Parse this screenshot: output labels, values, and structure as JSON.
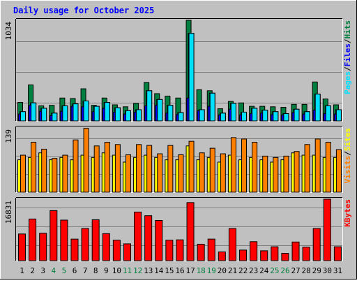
{
  "title": "Daily usage for October 2025",
  "colors": {
    "background": "#C0C0C0",
    "title": "#0000FF",
    "hits": "#008040",
    "files": "#00E0FF",
    "pages": "#0000FF",
    "visits": "#FFFF00",
    "sites": "#FF8000",
    "kbytes": "#FF0000",
    "weekend_label": "#008040",
    "weekday_label": "#000000"
  },
  "chart_data": [
    {
      "type": "bar",
      "panel": "hits-files-pages",
      "ymax_label": "1034",
      "ylim": [
        0,
        1034
      ],
      "legend": [
        "Pages",
        "Files",
        "Hits"
      ],
      "categories": [
        "1",
        "2",
        "3",
        "4",
        "5",
        "6",
        "7",
        "8",
        "9",
        "10",
        "11",
        "12",
        "13",
        "14",
        "15",
        "16",
        "17",
        "18",
        "19",
        "20",
        "21",
        "22",
        "23",
        "24",
        "25",
        "26",
        "27",
        "28",
        "29",
        "30",
        "31"
      ],
      "weekend_days": [
        "4",
        "5",
        "11",
        "12",
        "18",
        "19",
        "25",
        "26"
      ],
      "series": [
        {
          "name": "Hits",
          "values": [
            190,
            370,
            155,
            160,
            235,
            230,
            330,
            160,
            235,
            165,
            145,
            180,
            395,
            280,
            255,
            235,
            1034,
            320,
            310,
            125,
            200,
            185,
            150,
            150,
            145,
            140,
            170,
            170,
            400,
            225,
            165
          ]
        },
        {
          "name": "Files",
          "values": [
            95,
            185,
            130,
            80,
            155,
            175,
            205,
            150,
            190,
            135,
            105,
            115,
            310,
            220,
            160,
            85,
            900,
            115,
            285,
            80,
            180,
            90,
            130,
            110,
            95,
            75,
            120,
            95,
            275,
            155,
            115
          ]
        },
        {
          "name": "Pages",
          "values": [
            70,
            160,
            100,
            55,
            100,
            150,
            145,
            95,
            130,
            90,
            70,
            90,
            155,
            160,
            80,
            65,
            235,
            105,
            150,
            60,
            120,
            60,
            75,
            80,
            65,
            60,
            85,
            70,
            110,
            75,
            70
          ]
        }
      ]
    },
    {
      "type": "bar",
      "panel": "visits-sites",
      "ymax_label": "139",
      "ylim": [
        0,
        139
      ],
      "legend": [
        "Visits",
        "Sites"
      ],
      "categories": [
        "1",
        "2",
        "3",
        "4",
        "5",
        "6",
        "7",
        "8",
        "9",
        "10",
        "11",
        "12",
        "13",
        "14",
        "15",
        "16",
        "17",
        "18",
        "19",
        "20",
        "21",
        "22",
        "23",
        "24",
        "25",
        "26",
        "27",
        "28",
        "29",
        "30",
        "31"
      ],
      "series": [
        {
          "name": "Visits",
          "values": [
            70,
            75,
            85,
            70,
            75,
            70,
            80,
            75,
            85,
            80,
            65,
            75,
            80,
            75,
            70,
            70,
            100,
            70,
            75,
            65,
            80,
            70,
            75,
            70,
            65,
            70,
            85,
            80,
            80,
            75,
            75
          ]
        },
        {
          "name": "Sites",
          "values": [
            80,
            108,
            93,
            73,
            80,
            113,
            138,
            100,
            108,
            103,
            81,
            103,
            101,
            83,
            101,
            81,
            110,
            85,
            95,
            83,
            118,
            115,
            108,
            78,
            75,
            78,
            88,
            103,
            115,
            108,
            92
          ]
        }
      ]
    },
    {
      "type": "bar",
      "panel": "kbytes",
      "ymax_label": "16831",
      "ylim": [
        0,
        16831
      ],
      "legend": [
        "KBytes"
      ],
      "categories": [
        "1",
        "2",
        "3",
        "4",
        "5",
        "6",
        "7",
        "8",
        "9",
        "10",
        "11",
        "12",
        "13",
        "14",
        "15",
        "16",
        "17",
        "18",
        "19",
        "20",
        "21",
        "22",
        "23",
        "24",
        "25",
        "26",
        "27",
        "28",
        "29",
        "30",
        "31"
      ],
      "series": [
        {
          "name": "KBytes",
          "values": [
            7300,
            11400,
            7500,
            13700,
            11100,
            5900,
            8800,
            11200,
            7400,
            5600,
            4600,
            13300,
            12300,
            11000,
            5600,
            5700,
            15900,
            4500,
            5900,
            2400,
            8800,
            2900,
            5200,
            2700,
            3800,
            2000,
            5100,
            3700,
            8800,
            16831,
            3800
          ]
        }
      ]
    }
  ]
}
